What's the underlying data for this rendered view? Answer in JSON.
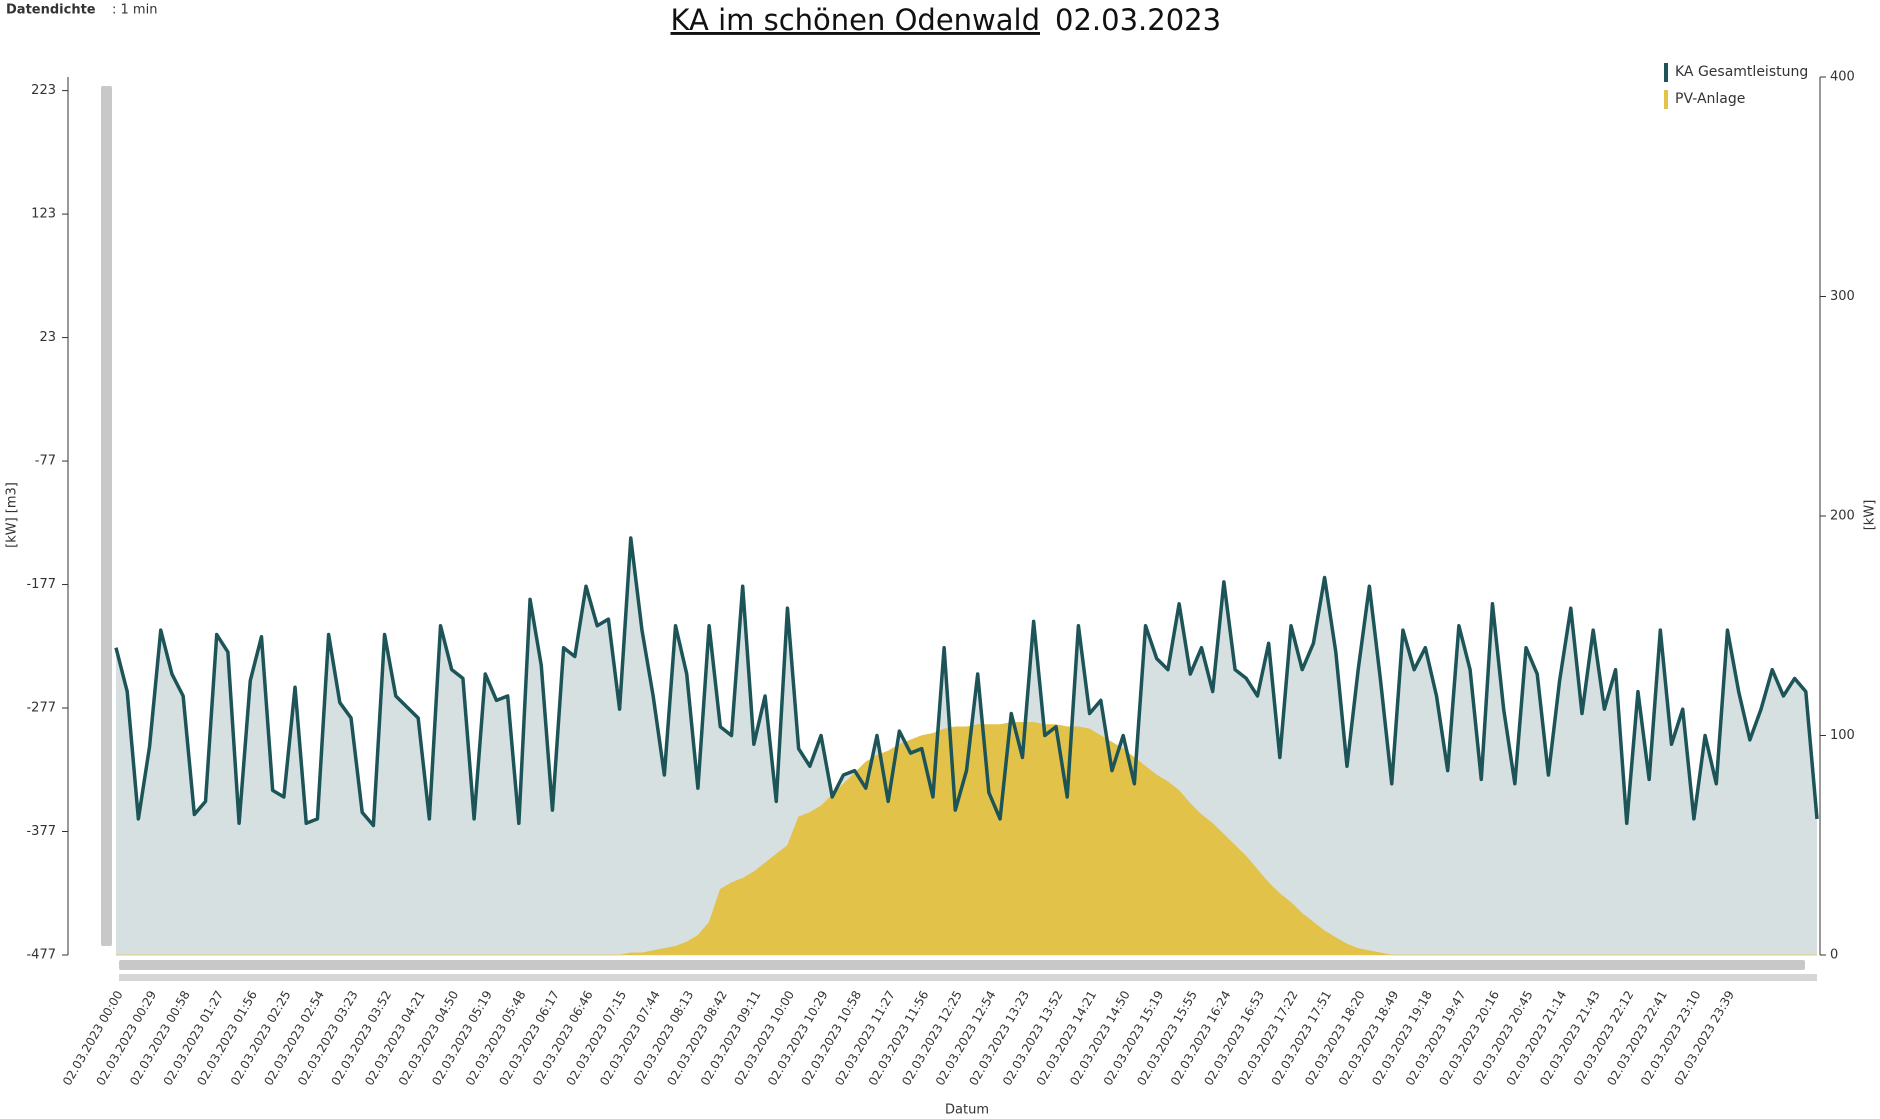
{
  "chart_data": {
    "type": "line",
    "header": {
      "label": "Datendichte",
      "value": ": 1 min"
    },
    "title": "KA im schönen Odenwald",
    "title_date": "02.03.2023",
    "y_label": "[kW]  [m3]",
    "y2_label": "[kW]",
    "x_label": "Datum",
    "ylim": [
      -477,
      234
    ],
    "yticks": [
      -477,
      -377,
      -277,
      -177,
      -77,
      23,
      123,
      223
    ],
    "y2lim": [
      0,
      400
    ],
    "y2ticks": [
      0,
      100,
      200,
      300,
      400
    ],
    "legend": "top-right",
    "categories": [
      "02.03.2023 00:00",
      null,
      null,
      "02.03.2023 00:29",
      null,
      null,
      "02.03.2023 00:58",
      null,
      null,
      "02.03.2023 01:27",
      null,
      null,
      "02.03.2023 01:56",
      null,
      null,
      "02.03.2023 02:25",
      null,
      null,
      "02.03.2023 02:54",
      null,
      null,
      "02.03.2023 03:23",
      null,
      null,
      "02.03.2023 03:52",
      null,
      null,
      "02.03.2023 04:21",
      null,
      null,
      "02.03.2023 04:50",
      null,
      null,
      "02.03.2023 05:19",
      null,
      null,
      "02.03.2023 05:48",
      null,
      null,
      "02.03.2023 06:17",
      null,
      null,
      "02.03.2023 06:46",
      null,
      null,
      "02.03.2023 07:15",
      null,
      null,
      "02.03.2023 07:44",
      null,
      null,
      "02.03.2023 08:13",
      null,
      null,
      "02.03.2023 08:42",
      null,
      null,
      "02.03.2023 09:11",
      null,
      null,
      "02.03.2023 10:00",
      null,
      null,
      "02.03.2023 10:29",
      null,
      null,
      "02.03.2023 10:58",
      null,
      null,
      "02.03.2023 11:27",
      null,
      null,
      "02.03.2023 11:56",
      null,
      null,
      "02.03.2023 12:25",
      null,
      null,
      "02.03.2023 12:54",
      null,
      null,
      "02.03.2023 13:23",
      null,
      null,
      "02.03.2023 13:52",
      null,
      null,
      "02.03.2023 14:21",
      null,
      null,
      "02.03.2023 14:50",
      null,
      null,
      "02.03.2023 15:19",
      null,
      null,
      "02.03.2023 15:55",
      null,
      null,
      "02.03.2023 16:24",
      null,
      null,
      "02.03.2023 16:53",
      null,
      null,
      "02.03.2023 17:22",
      null,
      null,
      "02.03.2023 17:51",
      null,
      null,
      "02.03.2023 18:20",
      null,
      null,
      "02.03.2023 18:49",
      null,
      null,
      "02.03.2023 19:18",
      null,
      null,
      "02.03.2023 19:47",
      null,
      null,
      "02.03.2023 20:16",
      null,
      null,
      "02.03.2023 20:45",
      null,
      null,
      "02.03.2023 21:14",
      null,
      null,
      "02.03.2023 21:43",
      null,
      null,
      "02.03.2023 22:12",
      null,
      null,
      "02.03.2023 22:41",
      null,
      null,
      "02.03.2023 23:10",
      null,
      null,
      "02.03.2023 23:39",
      null,
      null,
      null,
      null,
      null,
      null,
      null,
      null
    ],
    "series": [
      {
        "name": "KA Gesamtleistung",
        "color": "#1d5458",
        "fill": "#d6e0e1",
        "axis": "y2",
        "values": [
          140,
          120,
          62,
          95,
          148,
          128,
          118,
          64,
          70,
          146,
          138,
          60,
          125,
          145,
          75,
          72,
          122,
          60,
          62,
          146,
          115,
          108,
          65,
          59,
          146,
          118,
          113,
          108,
          62,
          150,
          130,
          126,
          62,
          128,
          116,
          118,
          60,
          162,
          132,
          66,
          140,
          136,
          168,
          150,
          153,
          112,
          190,
          148,
          118,
          82,
          150,
          128,
          76,
          150,
          104,
          100,
          168,
          96,
          118,
          70,
          158,
          94,
          86,
          100,
          72,
          82,
          84,
          76,
          100,
          70,
          102,
          92,
          94,
          72,
          140,
          66,
          84,
          128,
          74,
          62,
          110,
          90,
          152,
          100,
          104,
          72,
          150,
          110,
          116,
          84,
          100,
          78,
          150,
          135,
          130,
          160,
          128,
          140,
          120,
          170,
          130,
          126,
          118,
          142,
          90,
          150,
          130,
          142,
          172,
          138,
          86,
          130,
          168,
          125,
          78,
          148,
          130,
          140,
          118,
          84,
          150,
          130,
          80,
          160,
          112,
          78,
          140,
          128,
          82,
          125,
          158,
          110,
          148,
          112,
          130,
          60,
          120,
          80,
          148,
          96,
          112,
          62,
          100,
          78,
          148,
          120,
          98,
          112,
          130,
          118,
          126,
          120,
          62
        ]
      },
      {
        "name": "PV-Anlage",
        "color": "#e3c24a",
        "kind": "area",
        "axis": "y2",
        "values": [
          0,
          0,
          0,
          0,
          0,
          0,
          0,
          0,
          0,
          0,
          0,
          0,
          0,
          0,
          0,
          0,
          0,
          0,
          0,
          0,
          0,
          0,
          0,
          0,
          0,
          0,
          0,
          0,
          0,
          0,
          0,
          0,
          0,
          0,
          0,
          0,
          0,
          0,
          0,
          0,
          0,
          0,
          0,
          0,
          0,
          0,
          1,
          1,
          2,
          3,
          4,
          6,
          9,
          15,
          30,
          33,
          35,
          38,
          42,
          46,
          50,
          63,
          65,
          68,
          73,
          78,
          83,
          88,
          91,
          93,
          96,
          98,
          100,
          101,
          103,
          104,
          104,
          105,
          105,
          105,
          106,
          106,
          106,
          105,
          105,
          104,
          104,
          103,
          100,
          97,
          94,
          90,
          86,
          82,
          79,
          75,
          69,
          64,
          60,
          55,
          50,
          45,
          39,
          33,
          28,
          24,
          19,
          15,
          11,
          8,
          5,
          3,
          2,
          1,
          0,
          0,
          0,
          0,
          0,
          0,
          0,
          0,
          0,
          0,
          0,
          0,
          0,
          0,
          0,
          0,
          0,
          0,
          0,
          0,
          0,
          0,
          0,
          0,
          0,
          0,
          0,
          0,
          0,
          0,
          0,
          0,
          0,
          0,
          0,
          0,
          0,
          0,
          0
        ]
      }
    ]
  }
}
